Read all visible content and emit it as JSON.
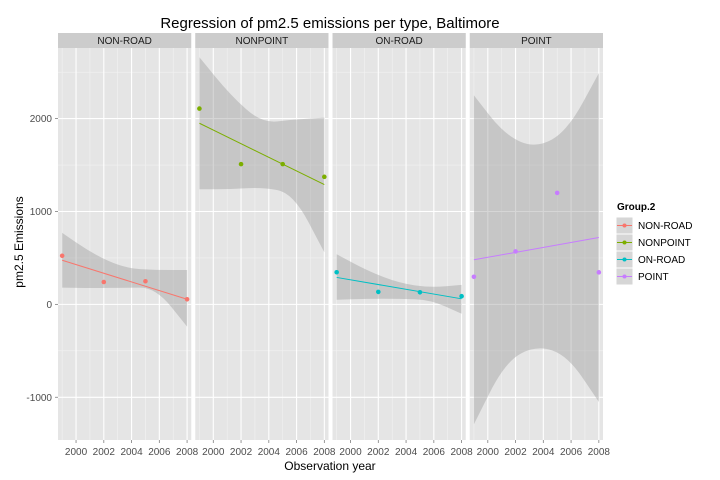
{
  "chart_data": {
    "type": "scatter",
    "title": "Regression of pm2.5 emissions per type, Baltimore",
    "xlabel": "Observation year",
    "ylabel": "pm2.5 Emissions",
    "x": [
      1999,
      2002,
      2005,
      2008
    ],
    "xticks": [
      2000,
      2002,
      2004,
      2006,
      2008
    ],
    "xtick_labels": [
      "2000",
      "2002",
      "2004",
      "2006",
      "2008"
    ],
    "xlim": [
      1998.7,
      2008.3
    ],
    "ylim": [
      -1460,
      2760
    ],
    "yticks": [
      -1000,
      0,
      1000,
      2000
    ],
    "ytick_labels": [
      "-1000",
      "0",
      "1000",
      "2000"
    ],
    "grid": true,
    "legend": {
      "title": "Group.2",
      "position": "right"
    },
    "facets": [
      {
        "name": "NON-ROAD",
        "color": "#F8766D",
        "values": [
          523,
          241,
          249,
          55
        ],
        "fit": [
          475,
          55
        ],
        "band_lo": [
          180,
          175,
          180,
          180,
          -240
        ],
        "band_hi": [
          770,
          540,
          390,
          370,
          370
        ]
      },
      {
        "name": "NONPOINT",
        "color": "#7CAE00",
        "values": [
          2108,
          1510,
          1510,
          1373
        ],
        "fit": [
          1950,
          1290
        ],
        "band_lo": [
          1240,
          1240,
          1260,
          1200,
          560
        ],
        "band_hi": [
          2660,
          2250,
          1950,
          1990,
          2010
        ]
      },
      {
        "name": "ON-ROAD",
        "color": "#00BFC4",
        "values": [
          346,
          134,
          130,
          88
        ],
        "fit": [
          290,
          60
        ],
        "band_lo": [
          50,
          60,
          60,
          50,
          -100
        ],
        "band_hi": [
          540,
          360,
          230,
          180,
          210
        ]
      },
      {
        "name": "POINT",
        "color": "#C77CFF",
        "values": [
          297,
          570,
          1200,
          345
        ],
        "fit": [
          480,
          720
        ],
        "band_lo": [
          -1290,
          -620,
          -440,
          -550,
          -1050
        ],
        "band_hi": [
          2250,
          1820,
          1680,
          1870,
          2490
        ]
      }
    ],
    "colors": {
      "panel_bg": "#E5E5E5",
      "grid_major": "#FFFFFF",
      "grid_minor": "#F2F2F2",
      "strip_bg": "#CCCCCC",
      "band": "#999999"
    }
  }
}
